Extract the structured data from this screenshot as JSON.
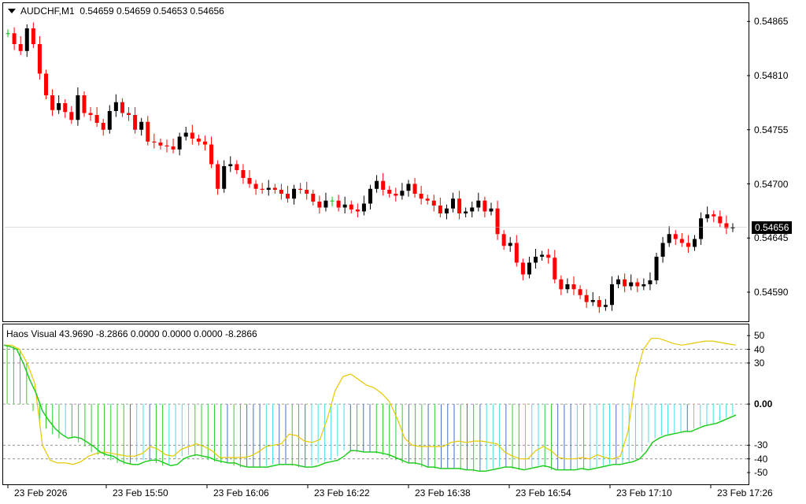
{
  "chart_data": [
    {
      "type": "candlestick",
      "symbol_header": "AUDCHF,M1",
      "ohlc_header": "0.54659 0.54659 0.54653 0.54656",
      "current_price": "0.54656",
      "y_ticks": [
        "0.54865",
        "0.54810",
        "0.54755",
        "0.54700",
        "0.54645",
        "0.54590"
      ],
      "ylim": [
        0.54562,
        0.54882
      ],
      "x_ticks": [
        "23 Feb 2026",
        "23 Feb 15:50",
        "23 Feb 16:06",
        "23 Feb 16:22",
        "23 Feb 16:38",
        "23 Feb 16:54",
        "23 Feb 17:10",
        "23 Feb 17:26"
      ],
      "up_color": "#000000",
      "down_color": "#ff0000",
      "doji_color": "#00c000",
      "close_series": [
        0.54853,
        0.54842,
        0.54835,
        0.54858,
        0.54842,
        0.54812,
        0.5479,
        0.54775,
        0.54782,
        0.54773,
        0.54765,
        0.5479,
        0.54772,
        0.5477,
        0.54762,
        0.54755,
        0.54774,
        0.54783,
        0.54772,
        0.5477,
        0.54755,
        0.54763,
        0.54743,
        0.54742,
        0.54739,
        0.54738,
        0.54735,
        0.54748,
        0.54752,
        0.54746,
        0.54743,
        0.5474,
        0.5472,
        0.54695,
        0.54718,
        0.5472,
        0.54714,
        0.54706,
        0.547,
        0.54695,
        0.54694,
        0.54696,
        0.54694,
        0.5469,
        0.54685,
        0.54695,
        0.54694,
        0.5469,
        0.54682,
        0.54676,
        0.54683,
        0.54683,
        0.54676,
        0.54679,
        0.54674,
        0.54672,
        0.5468,
        0.54695,
        0.54703,
        0.54694,
        0.5469,
        0.54688,
        0.54693,
        0.547,
        0.5469,
        0.54685,
        0.54683,
        0.54678,
        0.5467,
        0.54675,
        0.54685,
        0.5467,
        0.54672,
        0.54676,
        0.54683,
        0.54672,
        0.54675,
        0.54649,
        0.54637,
        0.5464,
        0.5462,
        0.54608,
        0.5462,
        0.54626,
        0.54628,
        0.54625,
        0.54603,
        0.54593,
        0.54598,
        0.54593,
        0.54587,
        0.5458,
        0.54582,
        0.54575,
        0.54577,
        0.54598,
        0.54603,
        0.54596,
        0.546,
        0.54596,
        0.54598,
        0.54602,
        0.54626,
        0.5464,
        0.54649,
        0.54644,
        0.5464,
        0.54636,
        0.54644,
        0.54665,
        0.54669,
        0.54667,
        0.5466,
        0.54655,
        0.54656
      ]
    },
    {
      "type": "histogram+line",
      "indicator_header": "Haos Visual 43.9690 -8.2866 0.0000 0.0000 0.0000 -8.2866",
      "y_ticks": [
        "50",
        "40",
        "30",
        "0.00",
        "-30",
        "-40",
        "-50"
      ],
      "ylim": [
        -58,
        57
      ],
      "levels": [
        40,
        30,
        -30,
        -40
      ],
      "bar_colors": {
        "blue": "#4472c4",
        "green": "#32cd32",
        "cyan": "#40e0e8"
      },
      "green_line": [
        43,
        42,
        40,
        30,
        18,
        8,
        -5,
        -12,
        -18,
        -22,
        -25,
        -24,
        -25,
        -28,
        -31,
        -35,
        -37,
        -38,
        -41,
        -43,
        -44,
        -44,
        -42,
        -41,
        -41,
        -43,
        -45,
        -44,
        -40,
        -38,
        -37,
        -38,
        -39,
        -41,
        -42,
        -43,
        -43,
        -45,
        -46,
        -46,
        -46,
        -46,
        -45,
        -44,
        -44,
        -44,
        -45,
        -46,
        -46,
        -45,
        -43,
        -42,
        -41,
        -38,
        -34,
        -34,
        -35,
        -35,
        -35,
        -36,
        -37,
        -39,
        -41,
        -43,
        -43,
        -44,
        -46,
        -46,
        -47,
        -47,
        -47,
        -47,
        -48,
        -48,
        -49,
        -49,
        -48,
        -47,
        -46,
        -46,
        -47,
        -48,
        -47,
        -46,
        -45,
        -46,
        -48,
        -48,
        -48,
        -48,
        -47,
        -48,
        -47,
        -46,
        -45,
        -44,
        -44,
        -43,
        -42,
        -40,
        -35,
        -28,
        -25,
        -23,
        -22,
        -21,
        -20,
        -20,
        -18,
        -16,
        -15,
        -14,
        -12,
        -10,
        -8
      ],
      "yellow_line": [
        43,
        43,
        40,
        30,
        15,
        -30,
        -41,
        -43,
        -43,
        -44,
        -42,
        -38,
        -36,
        -35,
        -36,
        -37,
        -38,
        -38,
        -36,
        -31,
        -33,
        -37,
        -38,
        -33,
        -31,
        -29,
        -31,
        -34,
        -39,
        -39,
        -39,
        -39,
        -38,
        -35,
        -31,
        -30,
        -29,
        -22,
        -23,
        -27,
        -28,
        -26,
        -10,
        10,
        20,
        22,
        18,
        14,
        12,
        8,
        2,
        -10,
        -25,
        -30,
        -31,
        -31,
        -31,
        -31,
        -28,
        -27,
        -28,
        -27,
        -27,
        -28,
        -29,
        -35,
        -38,
        -40,
        -40,
        -34,
        -31,
        -34,
        -39,
        -40,
        -40,
        -39,
        -40,
        -37,
        -39,
        -40,
        -38,
        -20,
        20,
        40,
        48,
        48,
        46,
        44,
        43,
        44,
        45,
        46,
        46,
        45,
        44,
        43
      ],
      "bar_values": [
        43,
        42,
        40,
        30,
        -5,
        -12,
        -18,
        -22,
        -25,
        -24,
        -25,
        -28,
        -31,
        -35,
        -37,
        -38,
        -41,
        -43,
        -44,
        -44,
        -42,
        -41,
        -41,
        -43,
        -45,
        -44,
        -40,
        -38,
        -37,
        -38,
        -39,
        -41,
        -42,
        -43,
        -43,
        -45,
        -46,
        -46,
        -46,
        -46,
        -45,
        -44,
        -44,
        -44,
        -45,
        -46,
        -46,
        -45,
        -43,
        -42,
        -41,
        -38,
        -34,
        -34,
        -35,
        -35,
        -35,
        -36,
        -37,
        -39,
        -41,
        -43,
        -43,
        -44,
        -46,
        -46,
        -47,
        -47,
        -47,
        -47,
        -48,
        -48,
        -49,
        -49,
        -48,
        -47,
        -46,
        -46,
        -47,
        -48,
        -47,
        -46,
        -45,
        -46,
        -48,
        -48,
        -48,
        -48,
        -47,
        -48,
        -47,
        -46,
        -45,
        -44,
        -44,
        -43,
        -42,
        -40,
        -35,
        -28,
        -25,
        -23,
        -22,
        -21,
        -20,
        -20,
        -18,
        -16,
        -15,
        -14,
        -12,
        -10,
        -8
      ]
    }
  ]
}
